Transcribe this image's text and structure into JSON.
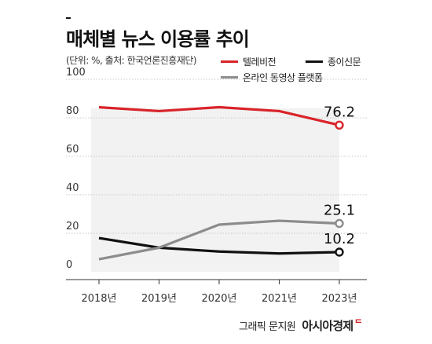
{
  "header": {
    "title": "매체별 뉴스 이용률 추이",
    "source_note": "(단위: %, 출처: 한국언론진흥재단)"
  },
  "legend": [
    {
      "label": "텔레비전",
      "color": "#d9232a"
    },
    {
      "label": "종이신문",
      "color": "#111111"
    },
    {
      "label": "온라인 동영상 플랫폼",
      "color": "#8c8c8c"
    }
  ],
  "chart_data": {
    "type": "line",
    "categories": [
      "2018년",
      "2019년",
      "2020년",
      "2021년",
      "2023년"
    ],
    "ylim": [
      0,
      100
    ],
    "yticks": [
      0,
      20,
      40,
      60,
      80,
      100
    ],
    "grid": true,
    "legend_position": "top-right",
    "series": [
      {
        "name": "텔레비전",
        "values": [
          85.5,
          83.5,
          85.5,
          83.5,
          76.2
        ],
        "color": "#d9232a",
        "end_label": "76.2"
      },
      {
        "name": "종이신문",
        "values": [
          17.5,
          12.5,
          10.5,
          9.5,
          10.2
        ],
        "color": "#111111",
        "end_label": "10.2"
      },
      {
        "name": "온라인 동영상 플랫폼",
        "values": [
          6.5,
          12.5,
          24.5,
          26.5,
          25.1
        ],
        "color": "#8c8c8c",
        "end_label": "25.1"
      }
    ]
  },
  "footer": {
    "credit": "그래픽 문지원",
    "brand": "아시아경제",
    "brand_mark": "ᄃ"
  }
}
